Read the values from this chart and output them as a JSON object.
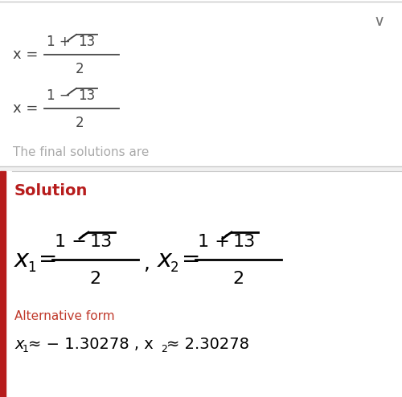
{
  "bg_color": "#f0f0f0",
  "top_bg": "#ffffff",
  "bottom_bg": "#ffffff",
  "red_bar_color": "#b71c1c",
  "solution_color": "#b71c1c",
  "alt_form_color": "#c0392b",
  "divider_color": "#c8c8c8",
  "text_color": "#444444",
  "gray_text": "#aaaaaa",
  "chevron_color": "#777777",
  "solution_label": "Solution",
  "alt_form_label": "Alternative form",
  "final_solutions_text": "The final solutions are"
}
